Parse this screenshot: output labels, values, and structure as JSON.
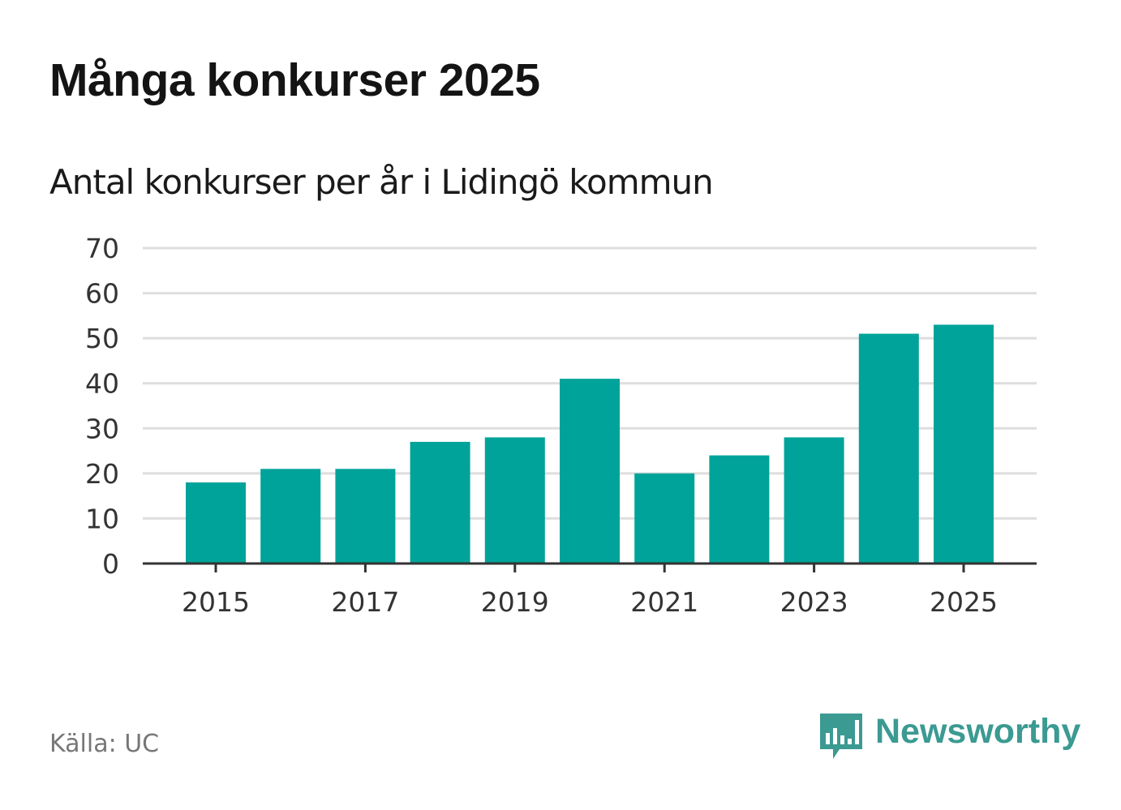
{
  "title": "Många konkurser 2025",
  "subtitle": "Antal konkurser per år i Lidingö kommun",
  "source": "Källa: UC",
  "brand": {
    "name": "Newsworthy",
    "icon": "bar-chart-speech-bubble-icon",
    "color": "#3b9a92"
  },
  "colors": {
    "bar": "#00a39a",
    "grid": "#dedede",
    "axis": "#333333",
    "text": "#333333"
  },
  "chart_data": {
    "type": "bar",
    "title": "Antal konkurser per år i Lidingö kommun",
    "xlabel": "",
    "ylabel": "",
    "categories": [
      "2015",
      "2016",
      "2017",
      "2018",
      "2019",
      "2020",
      "2021",
      "2022",
      "2023",
      "2024",
      "2025"
    ],
    "values": [
      18,
      21,
      21,
      27,
      28,
      41,
      20,
      24,
      28,
      51,
      53
    ],
    "x_tick_labels": [
      "2015",
      "2017",
      "2019",
      "2021",
      "2023",
      "2025"
    ],
    "y_ticks": [
      0,
      10,
      20,
      30,
      40,
      50,
      60,
      70
    ],
    "ylim": [
      0,
      70
    ],
    "grid": true,
    "legend": "none"
  }
}
